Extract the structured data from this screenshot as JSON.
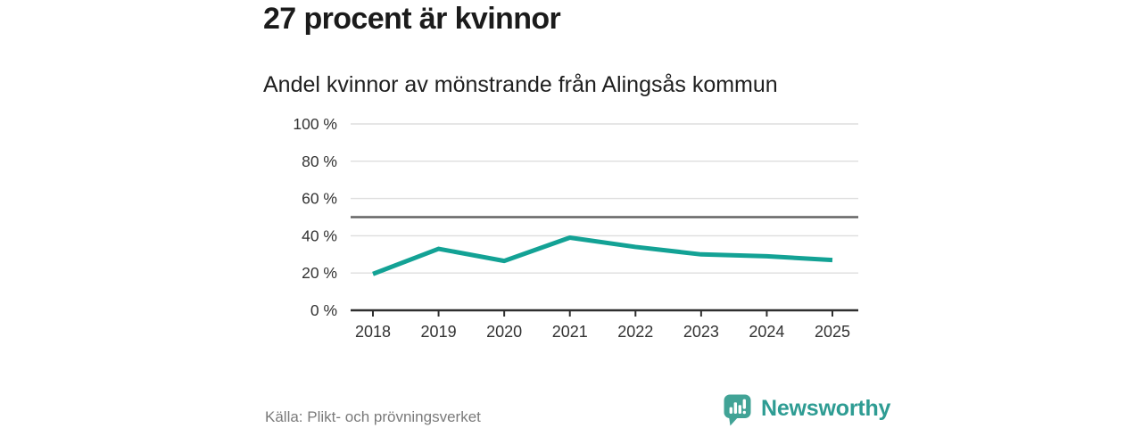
{
  "header": {
    "title": "27 procent är kvinnor",
    "subtitle": "Andel kvinnor av mönstrande från Alingsås kommun"
  },
  "footer": {
    "source": "Källa: Plikt- och prövningsverket",
    "brand": "Newsworthy",
    "brand_icon": "bar-chart-speech-bubble-icon"
  },
  "colors": {
    "line": "#13a295",
    "grid": "#dedede",
    "reference_line": "#646464",
    "axis": "#2f2f2f",
    "tick_label": "#333333",
    "title_text": "#1b1b1b",
    "source_text": "#7a7a7a",
    "brand_teal": "#2e9c93",
    "logo_bubble": "#41a396",
    "logo_bars": "#ffffff",
    "background": "#ffffff"
  },
  "chart_data": {
    "type": "line",
    "title": "27 procent är kvinnor",
    "subtitle": "Andel kvinnor av mönstrande från Alingsås kommun",
    "x": [
      "2018",
      "2019",
      "2020",
      "2021",
      "2022",
      "2023",
      "2024",
      "2025"
    ],
    "series": [
      {
        "name": "Andel kvinnor av mönstrande",
        "values": [
          19.5,
          33,
          26.5,
          39,
          34,
          30,
          29,
          27
        ]
      }
    ],
    "ylim": [
      0,
      100
    ],
    "yticks": [
      0,
      20,
      40,
      60,
      80,
      100
    ],
    "ytick_format": "{v} %",
    "reference_line": 50,
    "grid": "horizontal",
    "legend": "none",
    "markers": "none"
  }
}
